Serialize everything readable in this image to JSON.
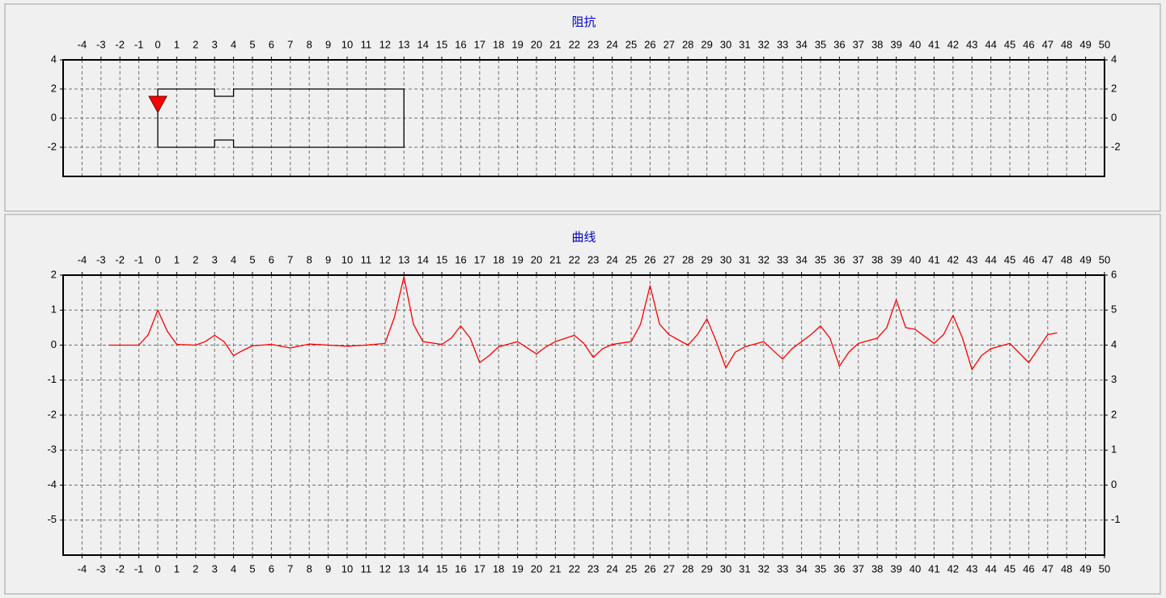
{
  "chart_data": [
    {
      "type": "line",
      "title": "阻抗",
      "xlim": [
        -5,
        50
      ],
      "xticks": [
        -4,
        -3,
        -2,
        -1,
        0,
        1,
        2,
        3,
        4,
        5,
        6,
        7,
        8,
        9,
        10,
        11,
        12,
        13,
        14,
        15,
        16,
        17,
        18,
        19,
        20,
        21,
        22,
        23,
        24,
        25,
        26,
        27,
        28,
        29,
        30,
        31,
        32,
        33,
        34,
        35,
        36,
        37,
        38,
        39,
        40,
        41,
        42,
        43,
        44,
        45,
        46,
        47,
        48,
        49,
        50
      ],
      "xtick_positions": [
        "top"
      ],
      "ylim": [
        -4,
        4
      ],
      "yticks": [
        -2,
        0,
        2,
        4
      ],
      "y2lim": [
        -4,
        4
      ],
      "y2ticks": [
        -2,
        0,
        2,
        4
      ],
      "grid": true,
      "series": [
        {
          "color": "#000000",
          "x": [
            0,
            3,
            3,
            4,
            4,
            13,
            13,
            4,
            4,
            3,
            3,
            0,
            0
          ],
          "values": [
            2,
            2,
            1.5,
            1.5,
            2,
            2,
            -2,
            -2,
            -1.5,
            -1.5,
            -2,
            -2,
            2
          ]
        },
        {
          "color": "#ff0000",
          "marker": "triangle-down",
          "x": [
            0
          ],
          "values": [
            1
          ]
        }
      ]
    },
    {
      "type": "line",
      "title": "曲线",
      "xlim": [
        -5,
        50
      ],
      "xticks": [
        -4,
        -3,
        -2,
        -1,
        0,
        1,
        2,
        3,
        4,
        5,
        6,
        7,
        8,
        9,
        10,
        11,
        12,
        13,
        14,
        15,
        16,
        17,
        18,
        19,
        20,
        21,
        22,
        23,
        24,
        25,
        26,
        27,
        28,
        29,
        30,
        31,
        32,
        33,
        34,
        35,
        36,
        37,
        38,
        39,
        40,
        41,
        42,
        43,
        44,
        45,
        46,
        47,
        48,
        49,
        50
      ],
      "xtick_positions": [
        "top",
        "bottom"
      ],
      "ylim": [
        -6,
        2
      ],
      "yticks": [
        -5,
        -4,
        -3,
        -2,
        -1,
        0,
        1,
        2
      ],
      "y2lim": [
        -2,
        6
      ],
      "y2ticks": [
        -1,
        0,
        1,
        2,
        3,
        4,
        5,
        6
      ],
      "grid": true,
      "series": [
        {
          "color": "#ff0000",
          "x": [
            -2.6,
            -1,
            -0.5,
            0,
            0.5,
            1,
            2,
            2.5,
            3,
            3.5,
            4,
            4.5,
            5,
            6,
            7,
            8,
            9,
            10,
            11,
            12,
            12.5,
            13,
            13.5,
            14,
            15,
            15.5,
            16,
            16.5,
            17,
            17.5,
            18,
            19,
            20,
            20.5,
            21,
            22,
            22.5,
            23,
            23.5,
            24,
            25,
            25.5,
            26,
            26.5,
            27,
            28,
            28.5,
            29,
            29.5,
            30,
            30.5,
            31,
            32,
            33,
            33.5,
            34,
            34.5,
            35,
            35.5,
            36,
            36.5,
            37,
            38,
            38.5,
            39,
            39.5,
            40,
            41,
            41.5,
            42,
            42.5,
            43,
            43.5,
            44,
            45,
            46,
            46.5,
            47,
            47.5
          ],
          "values": [
            0,
            0,
            0.3,
            1.0,
            0.4,
            0.02,
            0,
            0.1,
            0.28,
            0.1,
            -0.3,
            -0.15,
            -0.02,
            0.02,
            -0.08,
            0.03,
            0,
            -0.03,
            0,
            0.05,
            0.8,
            1.95,
            0.6,
            0.1,
            0.02,
            0.2,
            0.55,
            0.2,
            -0.5,
            -0.3,
            -0.05,
            0.1,
            -0.25,
            -0.05,
            0.1,
            0.28,
            0.05,
            -0.35,
            -0.1,
            0.02,
            0.1,
            0.6,
            1.7,
            0.6,
            0.3,
            0,
            0.3,
            0.75,
            0.1,
            -0.65,
            -0.2,
            -0.05,
            0.1,
            -0.4,
            -0.1,
            0.1,
            0.3,
            0.55,
            0.2,
            -0.6,
            -0.2,
            0.05,
            0.2,
            0.5,
            1.3,
            0.5,
            0.45,
            0.05,
            0.3,
            0.85,
            0.2,
            -0.7,
            -0.3,
            -0.1,
            0.05,
            -0.5,
            -0.1,
            0.3,
            0.35
          ]
        }
      ]
    }
  ]
}
